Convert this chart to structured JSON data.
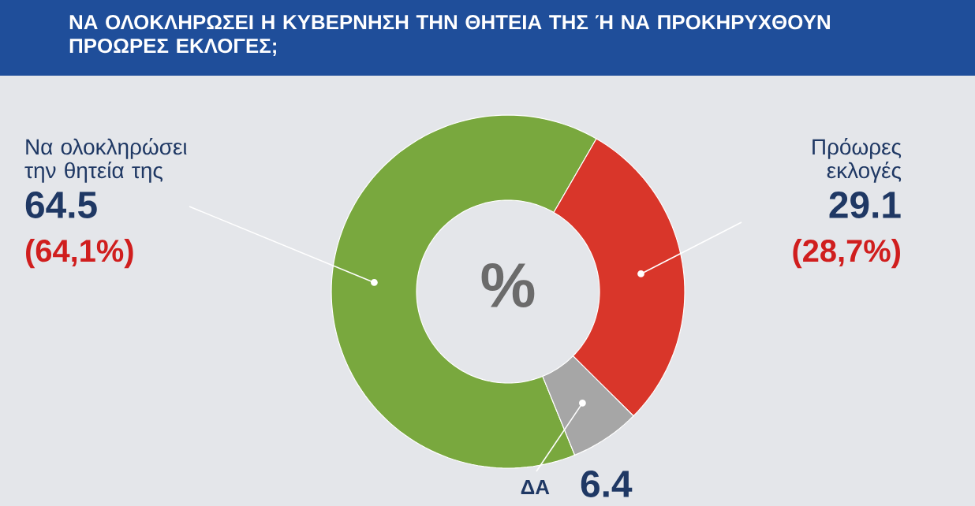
{
  "chart_data": {
    "type": "donut",
    "title": "ΝΑ ΟΛΟΚΛΗΡΩΣΕΙ Η ΚΥΒΕΡΝΗΣΗ ΤΗΝ ΘΗΤΕΙΑ ΤΗΣ Ή ΝΑ ΠΡΟΚΗΡΥΧΘΟΥΝ ΠΡΟΩΡΕΣ ΕΚΛΟΓΕΣ;",
    "categories": [
      "Να ολοκληρώσει την θητεία της",
      "Πρόωρες εκλογές",
      "ΔΑ"
    ],
    "values": [
      64.5,
      29.1,
      6.4
    ],
    "colors": [
      "#79a83e",
      "#d9362a",
      "#a6a6a6"
    ],
    "data_labels": true,
    "annotations": [
      "(64,1%)",
      "(28,7%)",
      "%"
    ]
  }
}
